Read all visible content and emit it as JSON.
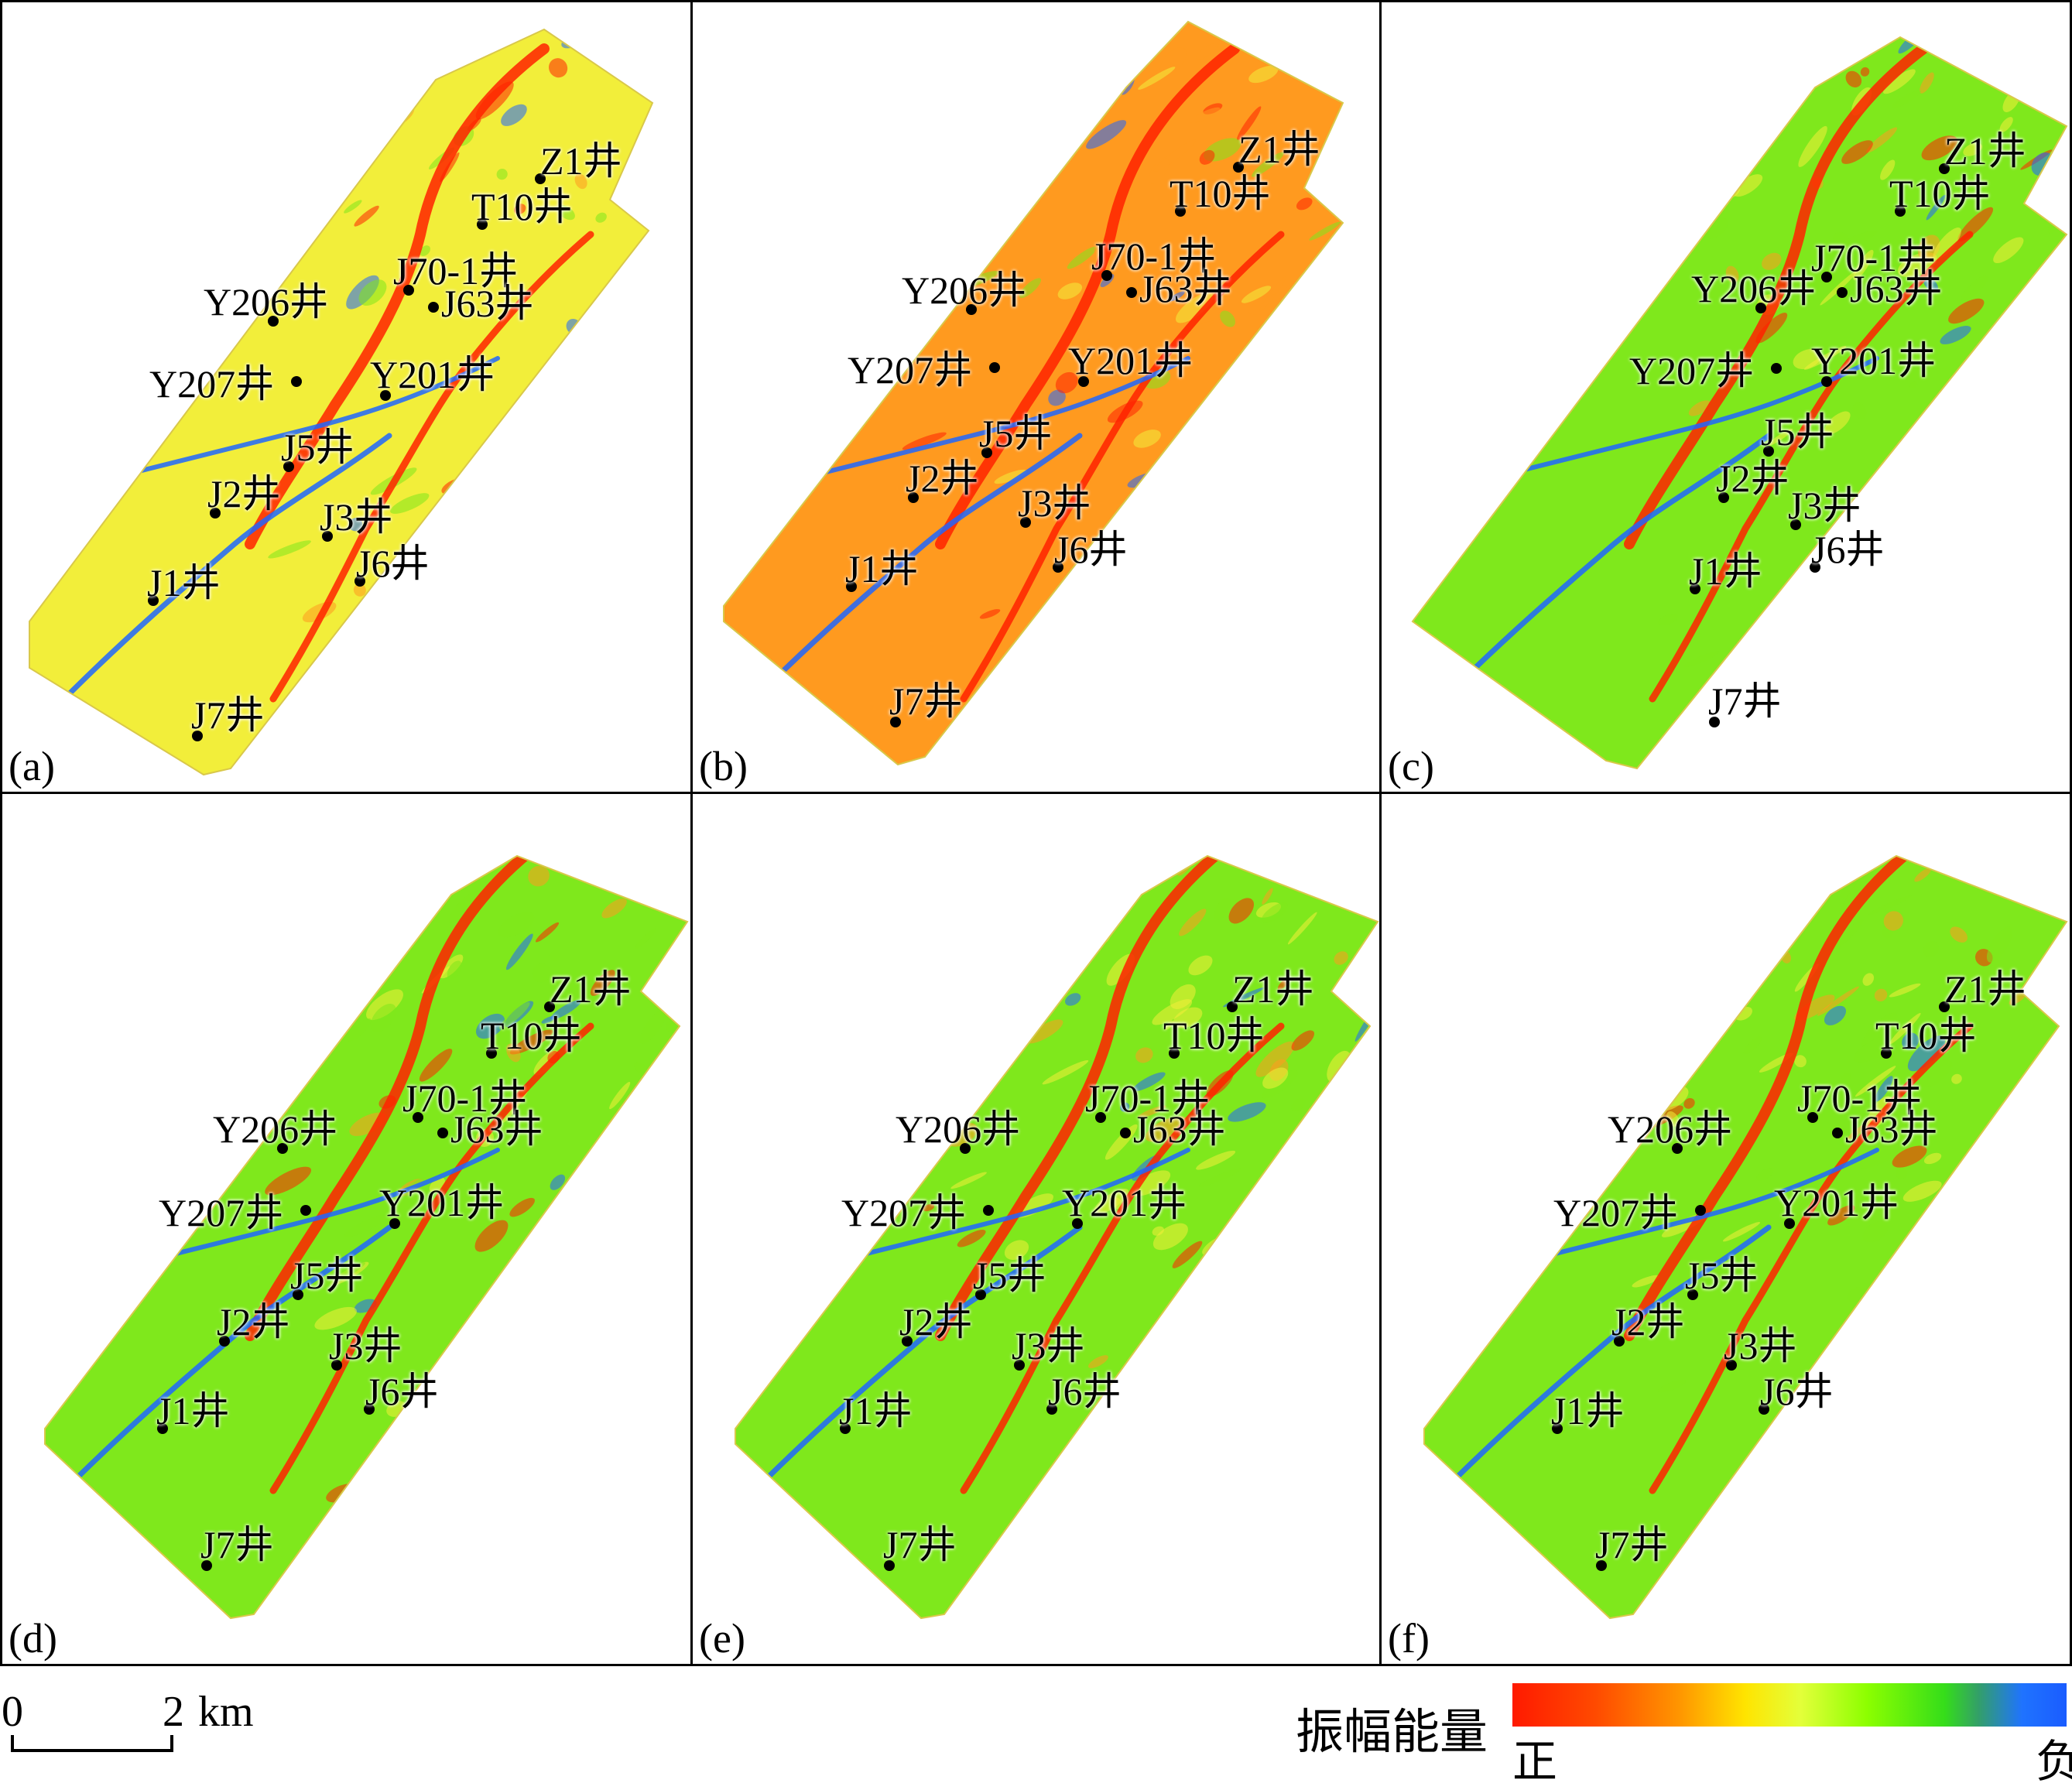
{
  "figure": {
    "panels": [
      {
        "label": "(a)",
        "wells": [
          "Z1井",
          "T10井",
          "J70-1井",
          "Y206井",
          "J63井",
          "Y207井",
          "Y201井",
          "J5井",
          "J2井",
          "J3井",
          "J6井",
          "J1井",
          "J7井"
        ]
      },
      {
        "label": "(b)",
        "wells": [
          "Z1井",
          "T10井",
          "J70-1井",
          "Y206井",
          "J63井",
          "Y207井",
          "Y201井",
          "J5井",
          "J2井",
          "J3井",
          "J6井",
          "J1井",
          "J7井"
        ]
      },
      {
        "label": "(c)",
        "wells": [
          "Z1井",
          "T10井",
          "J70-1井",
          "Y206井",
          "J63井",
          "Y207井",
          "Y201井",
          "J5井",
          "J2井",
          "J3井",
          "J6井",
          "J1井",
          "J7井"
        ]
      },
      {
        "label": "(d)",
        "wells": [
          "Z1井",
          "T10井",
          "J70-1井",
          "Y206井",
          "J63井",
          "Y207井",
          "Y201井",
          "J5井",
          "J2井",
          "J3井",
          "J6井",
          "J1井",
          "J7井"
        ]
      },
      {
        "label": "(e)",
        "wells": [
          "Z1井",
          "T10井",
          "J70-1井",
          "Y206井",
          "J63井",
          "Y207井",
          "Y201井",
          "J5井",
          "J2井",
          "J3井",
          "J6井",
          "J1井",
          "J7井"
        ]
      },
      {
        "label": "(f)",
        "wells": [
          "Z1井",
          "T10井",
          "J70-1井",
          "Y206井",
          "J63井",
          "Y207井",
          "Y201井",
          "J5井",
          "J2井",
          "J3井",
          "J6井",
          "J1井",
          "J7井"
        ]
      }
    ],
    "scale_bar": {
      "start": "0",
      "end": "2",
      "unit": "km"
    },
    "legend": {
      "title": "振幅能量",
      "low_label": "正",
      "high_label": "负",
      "colors": [
        "#ff1a00",
        "#ff9500",
        "#ffe400",
        "#8cff00",
        "#35dd1a",
        "#1a5cff"
      ]
    },
    "colors": {
      "red": "#ff2200",
      "orange": "#ff9a1f",
      "yellow": "#f2ee3a",
      "green": "#7fe81c",
      "blue": "#1f66ff"
    }
  }
}
